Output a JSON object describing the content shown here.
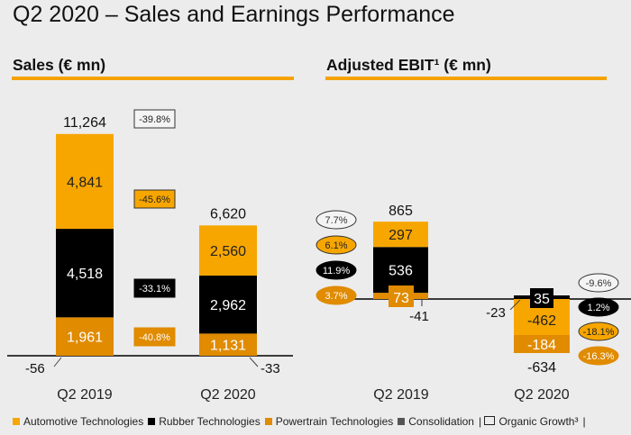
{
  "page_title": "Q2 2020 – Sales and Earnings Performance",
  "colors": {
    "automotive": "#f7a600",
    "rubber": "#000000",
    "powertrain": "#e08b00",
    "consolidation": "#555555",
    "accent_rule": "#f5a200"
  },
  "legend": [
    {
      "label": "Automotive Technologies",
      "color": "#f7a600",
      "kind": "square"
    },
    {
      "label": "Rubber Technologies",
      "color": "#000000",
      "kind": "square"
    },
    {
      "label": "Powertrain Technologies",
      "color": "#e08b00",
      "kind": "square"
    },
    {
      "label": "Consolidation",
      "color": "#555555",
      "kind": "square"
    },
    {
      "label": "Organic Growth³",
      "color": "none",
      "kind": "outline"
    }
  ],
  "chart_data": [
    {
      "type": "bar",
      "stacked": true,
      "title": "Sales (€ mn)",
      "categories": [
        "Q2 2019",
        "Q2 2020"
      ],
      "series": [
        {
          "name": "Powertrain Technologies",
          "values": [
            1961,
            1131
          ]
        },
        {
          "name": "Rubber Technologies",
          "values": [
            4518,
            2962
          ]
        },
        {
          "name": "Automotive Technologies",
          "values": [
            4841,
            2560
          ]
        },
        {
          "name": "Consolidation",
          "values": [
            -56,
            -33
          ]
        }
      ],
      "totals": [
        11264,
        6620
      ],
      "labels": {
        "totals": [
          "11,264",
          "6,620"
        ],
        "powertrain": [
          "1,961",
          "1,131"
        ],
        "rubber": [
          "4,518",
          "2,962"
        ],
        "automotive": [
          "4,841",
          "2,560"
        ],
        "consolidation": [
          "-56",
          "-33"
        ]
      },
      "changes": [
        {
          "label": "-39.8%",
          "segment": "Organic Growth³ total"
        },
        {
          "label": "-45.6%",
          "segment": "Automotive Technologies"
        },
        {
          "label": "-33.1%",
          "segment": "Rubber Technologies"
        },
        {
          "label": "-40.8%",
          "segment": "Powertrain Technologies"
        }
      ]
    },
    {
      "type": "bar",
      "stacked": true,
      "title": "Adjusted EBIT¹ (€ mn)",
      "categories": [
        "Q2 2019",
        "Q2 2020"
      ],
      "series": [
        {
          "name": "Powertrain Technologies",
          "values": [
            73,
            -184
          ]
        },
        {
          "name": "Rubber Technologies",
          "values": [
            536,
            35
          ]
        },
        {
          "name": "Automotive Technologies",
          "values": [
            297,
            -462
          ]
        },
        {
          "name": "Consolidation",
          "values": [
            -41,
            -23
          ]
        }
      ],
      "totals": [
        865,
        -634
      ],
      "labels": {
        "totals": [
          "865",
          "-634"
        ],
        "powertrain": [
          "73",
          "-184"
        ],
        "rubber": [
          "536",
          "35"
        ],
        "automotive": [
          "297",
          "-462"
        ],
        "consolidation": [
          "-41",
          "-23"
        ]
      },
      "margins_q2_2019": [
        {
          "label": "7.7%",
          "segment": "Total"
        },
        {
          "label": "6.1%",
          "segment": "Automotive Technologies"
        },
        {
          "label": "11.9%",
          "segment": "Rubber Technologies"
        },
        {
          "label": "3.7%",
          "segment": "Powertrain Technologies"
        }
      ],
      "margins_q2_2020": [
        {
          "label": "-9.6%",
          "segment": "Total"
        },
        {
          "label": "1.2%",
          "segment": "Rubber Technologies"
        },
        {
          "label": "-18.1%",
          "segment": "Automotive Technologies"
        },
        {
          "label": "-16.3%",
          "segment": "Powertrain Technologies"
        }
      ]
    }
  ]
}
